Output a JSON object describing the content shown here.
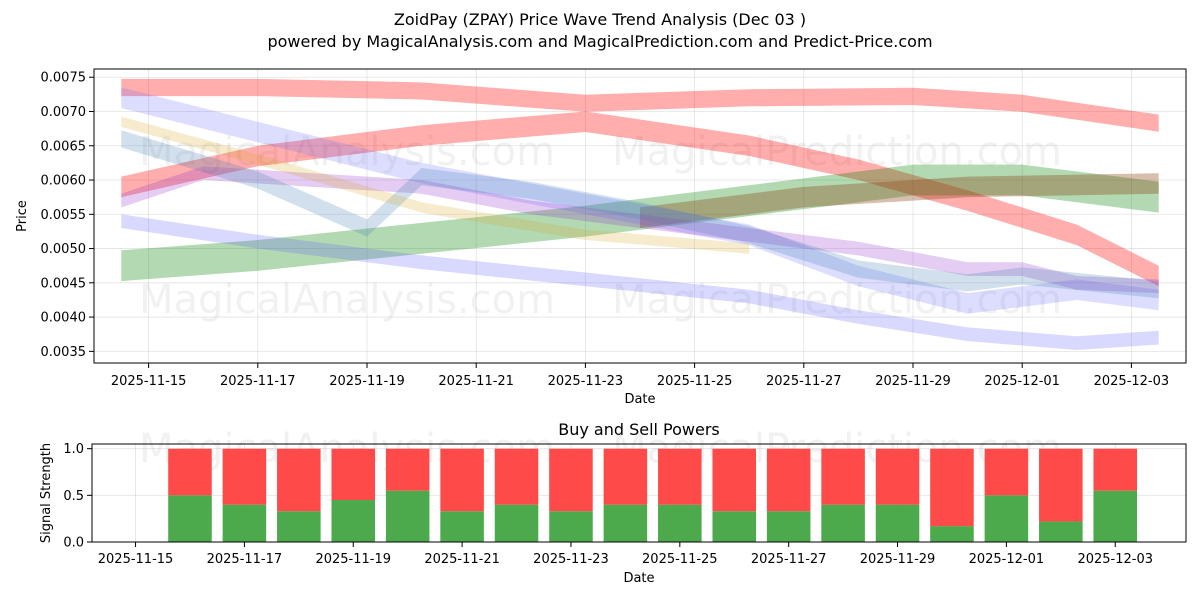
{
  "chart_data": [
    {
      "type": "line",
      "subtype": "wave-bands",
      "title": "ZoidPay (ZPAY) Price Wave Trend Analysis (Dec 03 )",
      "subtitle": "powered by MagicalAnalysis.com and MagicalPrediction.com and Predict-Price.com",
      "xlabel": "Date",
      "ylabel": "Price",
      "xlim": [
        "2025-11-14",
        "2025-12-04"
      ],
      "ylim": [
        0.00333,
        0.00762
      ],
      "x_ticks": [
        "2025-11-15",
        "2025-11-17",
        "2025-11-19",
        "2025-11-21",
        "2025-11-23",
        "2025-11-25",
        "2025-11-27",
        "2025-11-29",
        "2025-12-01",
        "2025-12-03"
      ],
      "y_ticks": [
        "0.0035",
        "0.0040",
        "0.0045",
        "0.0050",
        "0.0055",
        "0.0060",
        "0.0065",
        "0.0070",
        "0.0075"
      ],
      "grid": true,
      "watermarks": [
        "MagicalAnalysis.com",
        "MagicalPrediction.com",
        "MagicalAnalysis.com",
        "MagicalPrediction.com"
      ],
      "series": [
        {
          "name": "red upper wave",
          "color": "#ff0000",
          "opacity": 0.32,
          "width": 0.00025,
          "points": [
            [
              "2025-11-14.5",
              0.00735
            ],
            [
              "2025-11-17",
              0.00735
            ],
            [
              "2025-11-20",
              0.0073
            ],
            [
              "2025-11-23",
              0.00712
            ],
            [
              "2025-11-26",
              0.0072
            ],
            [
              "2025-11-29",
              0.00722
            ],
            [
              "2025-12-01",
              0.00712
            ],
            [
              "2025-12-03.5",
              0.00683
            ]
          ]
        },
        {
          "name": "red rising-falling wave",
          "color": "#ff0000",
          "opacity": 0.32,
          "width": 0.0003,
          "points": [
            [
              "2025-11-14.5",
              0.0059
            ],
            [
              "2025-11-17",
              0.00635
            ],
            [
              "2025-11-20",
              0.00665
            ],
            [
              "2025-11-23",
              0.00685
            ],
            [
              "2025-11-26",
              0.0065
            ],
            [
              "2025-11-28",
              0.00615
            ],
            [
              "2025-11-30",
              0.0057
            ],
            [
              "2025-12-02",
              0.0052
            ],
            [
              "2025-12-03.5",
              0.0046
            ]
          ]
        },
        {
          "name": "green rising band",
          "color": "#008000",
          "opacity": 0.3,
          "width": 0.00045,
          "points": [
            [
              "2025-11-14.5",
              0.00475
            ],
            [
              "2025-11-17",
              0.0049
            ],
            [
              "2025-11-20",
              0.00515
            ],
            [
              "2025-11-23",
              0.0054
            ],
            [
              "2025-11-26",
              0.0057
            ],
            [
              "2025-11-29",
              0.006
            ],
            [
              "2025-12-01",
              0.006
            ],
            [
              "2025-12-03.5",
              0.00575
            ]
          ]
        },
        {
          "name": "brown band",
          "color": "#8b4513",
          "opacity": 0.35,
          "width": 0.0003,
          "points": [
            [
              "2025-11-24",
              0.00545
            ],
            [
              "2025-11-27",
              0.00575
            ],
            [
              "2025-11-30",
              0.0059
            ],
            [
              "2025-12-03.5",
              0.00595
            ]
          ]
        },
        {
          "name": "blue lower wave",
          "color": "#6666ff",
          "opacity": 0.25,
          "width": 0.0002,
          "points": [
            [
              "2025-11-14.5",
              0.0054
            ],
            [
              "2025-11-17",
              0.0051
            ],
            [
              "2025-11-20",
              0.0048
            ],
            [
              "2025-11-23",
              0.00455
            ],
            [
              "2025-11-26",
              0.0043
            ],
            [
              "2025-11-28",
              0.004
            ],
            [
              "2025-11-30",
              0.00375
            ],
            [
              "2025-12-02",
              0.00362
            ],
            [
              "2025-12-03.5",
              0.0037
            ]
          ]
        },
        {
          "name": "blue upper wave",
          "color": "#6666ff",
          "opacity": 0.22,
          "width": 0.0003,
          "points": [
            [
              "2025-11-14.5",
              0.0072
            ],
            [
              "2025-11-17",
              0.0067
            ],
            [
              "2025-11-20",
              0.0061
            ],
            [
              "2025-11-23",
              0.00565
            ],
            [
              "2025-11-26",
              0.0052
            ],
            [
              "2025-11-28",
              0.0046
            ],
            [
              "2025-11-30",
              0.0042
            ],
            [
              "2025-12-02",
              0.0044
            ],
            [
              "2025-12-03.5",
              0.00425
            ]
          ]
        },
        {
          "name": "purple wave",
          "color": "#9933cc",
          "opacity": 0.25,
          "width": 0.0002,
          "points": [
            [
              "2025-11-14.5",
              0.0057
            ],
            [
              "2025-11-16",
              0.0061
            ],
            [
              "2025-11-18",
              0.006
            ],
            [
              "2025-11-20",
              0.0059
            ],
            [
              "2025-11-22",
              0.0056
            ],
            [
              "2025-11-24",
              0.0054
            ],
            [
              "2025-11-26",
              0.0052
            ],
            [
              "2025-11-28",
              0.005
            ],
            [
              "2025-11-30",
              0.0047
            ],
            [
              "2025-12-01",
              0.0047
            ],
            [
              "2025-12-02",
              0.0045
            ],
            [
              "2025-12-03.5",
              0.00445
            ]
          ]
        },
        {
          "name": "green-blue mid wave",
          "color": "#4682b4",
          "opacity": 0.25,
          "width": 0.00025,
          "points": [
            [
              "2025-11-14.5",
              0.0066
            ],
            [
              "2025-11-17",
              0.006
            ],
            [
              "2025-11-19",
              0.0053
            ],
            [
              "2025-11-20",
              0.00605
            ],
            [
              "2025-11-22",
              0.00585
            ],
            [
              "2025-11-24",
              0.00555
            ],
            [
              "2025-11-26",
              0.0052
            ],
            [
              "2025-11-28",
              0.0047
            ],
            [
              "2025-11-30",
              0.0045
            ],
            [
              "2025-12-01",
              0.0046
            ],
            [
              "2025-12-03.5",
              0.0044
            ]
          ]
        },
        {
          "name": "orange-gold wave",
          "color": "#daa520",
          "opacity": 0.22,
          "width": 0.00015,
          "points": [
            [
              "2025-11-14.5",
              0.00685
            ],
            [
              "2025-11-17",
              0.0063
            ],
            [
              "2025-11-20",
              0.0056
            ],
            [
              "2025-11-23",
              0.0052
            ],
            [
              "2025-11-26",
              0.005
            ]
          ]
        }
      ]
    },
    {
      "type": "bar",
      "subtype": "stacked",
      "title": "Buy and Sell Powers",
      "xlabel": "Date",
      "ylabel": "Signal Strength",
      "xlim": [
        "2025-11-14.2",
        "2025-12-04.3"
      ],
      "ylim": [
        0,
        1.05
      ],
      "x_ticks": [
        "2025-11-15",
        "2025-11-17",
        "2025-11-19",
        "2025-11-21",
        "2025-11-23",
        "2025-11-25",
        "2025-11-27",
        "2025-11-29",
        "2025-12-01",
        "2025-12-03"
      ],
      "y_ticks": [
        "0.0",
        "0.5",
        "1.0"
      ],
      "grid": true,
      "watermarks": [
        "MagicalAnalysis.com",
        "MagicalPrediction.com"
      ],
      "categories": [
        "2025-11-16",
        "2025-11-17",
        "2025-11-18",
        "2025-11-19",
        "2025-11-20",
        "2025-11-21",
        "2025-11-22",
        "2025-11-23",
        "2025-11-24",
        "2025-11-25",
        "2025-11-26",
        "2025-11-27",
        "2025-11-28",
        "2025-11-29",
        "2025-11-30",
        "2025-12-01",
        "2025-12-02",
        "2025-12-03"
      ],
      "series": [
        {
          "name": "Buy",
          "color": "#4caa4c",
          "values": [
            0.5,
            0.4,
            0.33,
            0.45,
            0.55,
            0.33,
            0.4,
            0.33,
            0.4,
            0.4,
            0.33,
            0.33,
            0.4,
            0.4,
            0.17,
            0.5,
            0.22,
            0.55
          ]
        },
        {
          "name": "Sell",
          "color": "#ff4a4a",
          "values": [
            0.5,
            0.6,
            0.67,
            0.55,
            0.45,
            0.67,
            0.6,
            0.67,
            0.6,
            0.6,
            0.67,
            0.67,
            0.6,
            0.6,
            0.83,
            0.5,
            0.78,
            0.45
          ]
        }
      ]
    }
  ]
}
